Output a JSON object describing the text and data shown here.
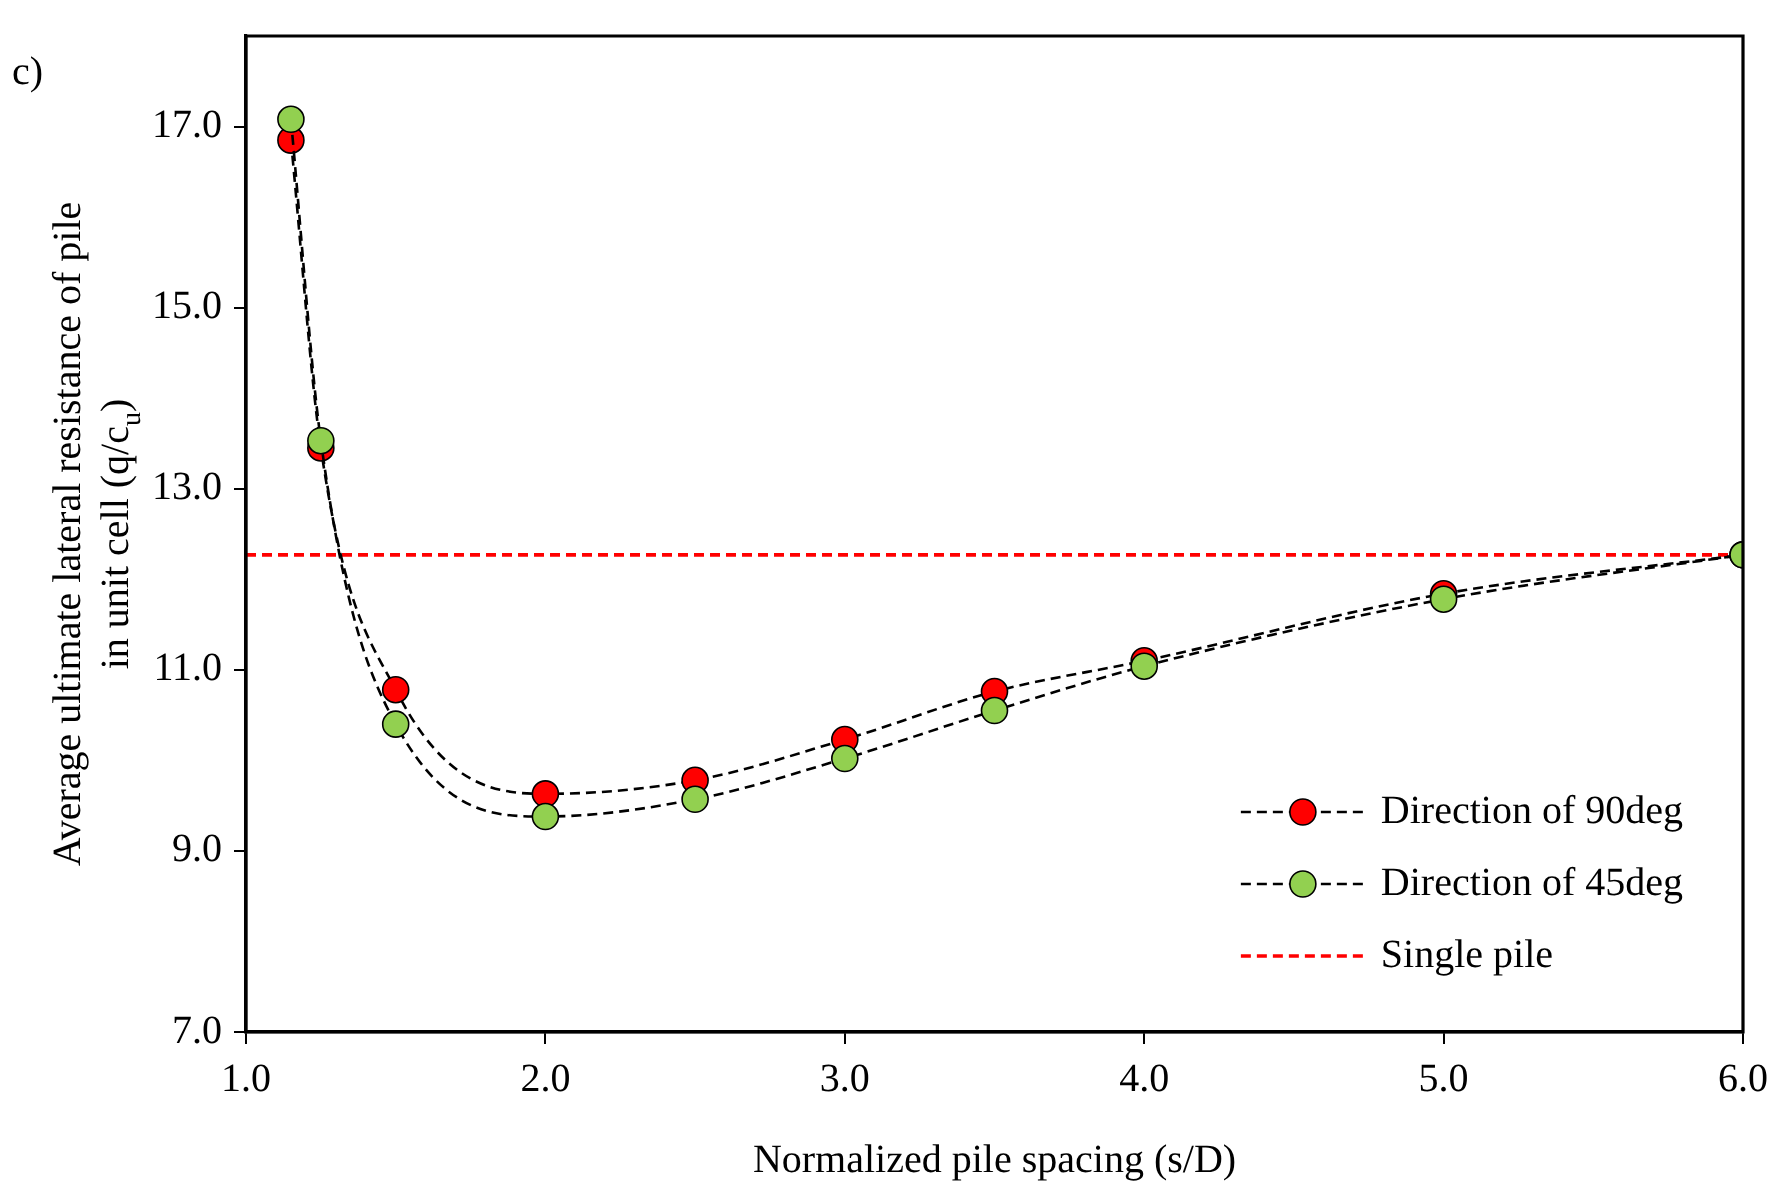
{
  "chart_data": {
    "type": "line",
    "xlabel": "Normalized pile spacing (s/D)",
    "ylabel": "Average ultimate lateral resistance of pile in unit cell (q/c$_{u}$)",
    "annotations": [
      "c)"
    ],
    "series": [
      {
        "name": "Direction of 90deg",
        "color": "#ff0000",
        "x": [
          1.15,
          1.25,
          1.5,
          2.0,
          2.5,
          3.0,
          3.5,
          4.0,
          5.0,
          6.0
        ],
        "values": [
          16.85,
          13.45,
          10.78,
          9.63,
          9.78,
          10.23,
          10.76,
          11.1,
          11.84,
          12.27
        ]
      },
      {
        "name": "Direction of 45deg",
        "color": "#92d050",
        "x": [
          1.15,
          1.25,
          1.5,
          2.0,
          2.5,
          3.0,
          3.5,
          4.0,
          5.0,
          6.0
        ],
        "values": [
          17.08,
          13.53,
          10.4,
          9.38,
          9.57,
          10.02,
          10.55,
          11.04,
          11.78,
          12.27
        ]
      }
    ],
    "ref_lines": [
      {
        "axis": "y",
        "value": 12.27,
        "label": "Single pile",
        "color": "#ff0000",
        "line_style": "dashed"
      }
    ],
    "xlim": [
      1,
      6
    ],
    "xticks": [
      {
        "value": 1,
        "label": "1.0"
      },
      {
        "value": 2,
        "label": "2.0"
      },
      {
        "value": 3,
        "label": "3.0"
      },
      {
        "value": 4,
        "label": "4.0"
      },
      {
        "value": 5,
        "label": "5.0"
      },
      {
        "value": 6,
        "label": "6.0"
      }
    ],
    "ylim": [
      7,
      18
    ],
    "yticks": [
      {
        "value": 7,
        "label": "7.0"
      },
      {
        "value": 9,
        "label": "9.0"
      },
      {
        "value": 11,
        "label": "11.0"
      },
      {
        "value": 13,
        "label": "13.0"
      },
      {
        "value": 15,
        "label": "15.0"
      },
      {
        "value": 17,
        "label": "17.0"
      }
    ],
    "grid": false,
    "legend": "bottom right",
    "marker": "circle",
    "line_style": "dashed"
  }
}
